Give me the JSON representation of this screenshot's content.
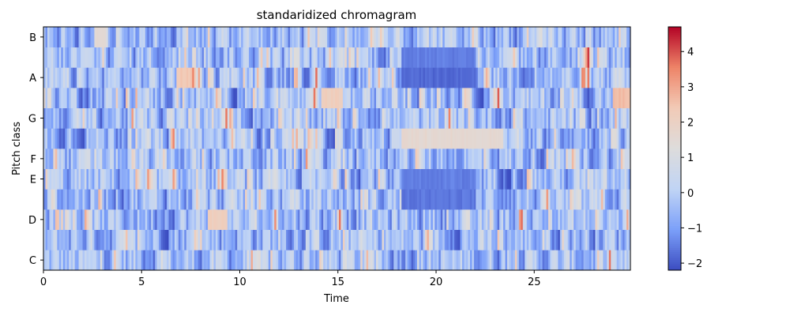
{
  "chart_data": {
    "type": "heatmap",
    "title": "standaridized chromagram",
    "xlabel": "Time",
    "ylabel": "Pitch class",
    "xlim": [
      0,
      29.9
    ],
    "x_ticks": [
      0,
      5,
      10,
      15,
      20,
      25
    ],
    "y_rows": 12,
    "y_tick_labels": [
      {
        "row": 0,
        "label": "C"
      },
      {
        "row": 2,
        "label": "D"
      },
      {
        "row": 4,
        "label": "E"
      },
      {
        "row": 5,
        "label": "F"
      },
      {
        "row": 7,
        "label": "G"
      },
      {
        "row": 9,
        "label": "A"
      },
      {
        "row": 11,
        "label": "B"
      }
    ],
    "colormap": "coolwarm",
    "colormap_stops": [
      "#3b4cc0",
      "#7b9ff9",
      "#c0d4f5",
      "#dddcdc",
      "#f2cbb7",
      "#ee8468",
      "#b40426"
    ],
    "vmin": -2.2,
    "vmax": 4.7,
    "colorbar_ticks": [
      -2,
      -1,
      0,
      1,
      2,
      3,
      4
    ],
    "colorbar_tick_labels": [
      "−2",
      "−1",
      "0",
      "1",
      "2",
      "3",
      "4"
    ],
    "time_frames": 300,
    "notable_regions": [
      {
        "t_start": 18.2,
        "t_end": 23.4,
        "row": 6,
        "level": 1.6
      },
      {
        "t_start": 18.2,
        "t_end": 22.0,
        "row": 9,
        "level": -1.8
      },
      {
        "t_start": 18.2,
        "t_end": 22.0,
        "row": 10,
        "level": -1.5
      },
      {
        "t_start": 18.2,
        "t_end": 22.0,
        "row": 3,
        "level": -1.6
      },
      {
        "t_start": 18.2,
        "t_end": 22.0,
        "row": 4,
        "level": -1.5
      },
      {
        "t_start": 6.8,
        "t_end": 7.6,
        "row": 9,
        "level": 2.4
      },
      {
        "t_start": 8.4,
        "t_end": 9.4,
        "row": 2,
        "level": 2.2
      },
      {
        "t_start": 14.2,
        "t_end": 15.2,
        "row": 8,
        "level": 2.2
      },
      {
        "t_start": 29.0,
        "t_end": 29.9,
        "row": 8,
        "level": 2.6
      },
      {
        "t_start": 2.6,
        "t_end": 3.2,
        "row": 11,
        "level": 1.5
      }
    ]
  }
}
